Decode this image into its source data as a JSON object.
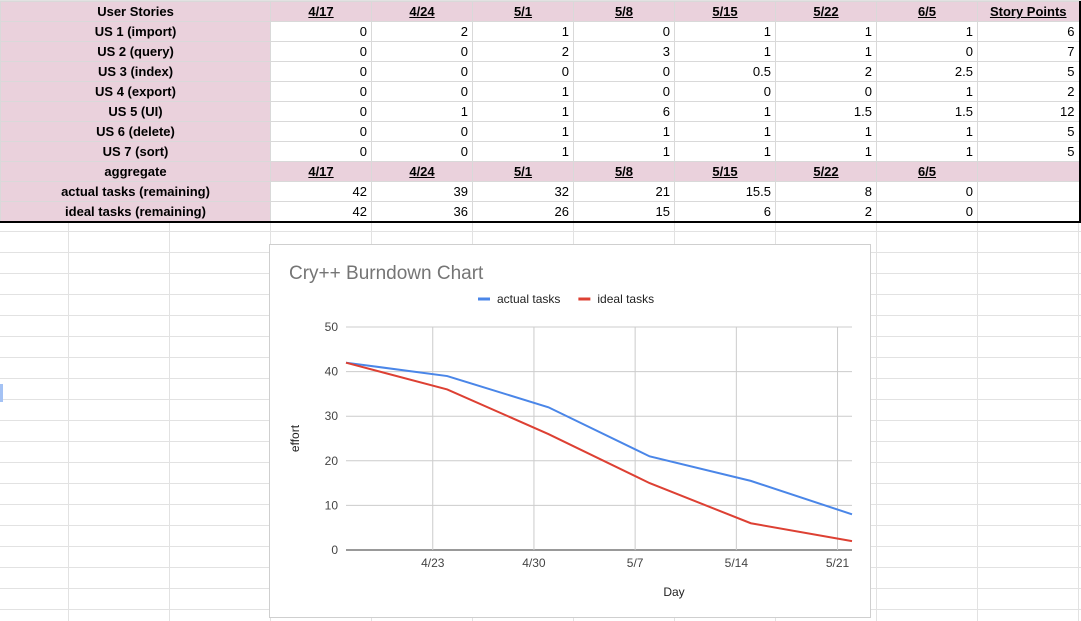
{
  "sheet": {
    "header": [
      "User Stories",
      "4/17",
      "4/24",
      "5/1",
      "5/8",
      "5/15",
      "5/22",
      "6/5",
      "Story Points"
    ],
    "stories": [
      {
        "label": "US 1 (import)",
        "values": [
          "0",
          "2",
          "1",
          "0",
          "1",
          "1",
          "1",
          "6"
        ]
      },
      {
        "label": "US 2 (query)",
        "values": [
          "0",
          "0",
          "2",
          "3",
          "1",
          "1",
          "0",
          "7"
        ]
      },
      {
        "label": "US 3 (index)",
        "values": [
          "0",
          "0",
          "0",
          "0",
          "0.5",
          "2",
          "2.5",
          "5"
        ]
      },
      {
        "label": "US 4 (export)",
        "values": [
          "0",
          "0",
          "1",
          "0",
          "0",
          "0",
          "1",
          "2"
        ]
      },
      {
        "label": "US 5 (UI)",
        "values": [
          "0",
          "1",
          "1",
          "6",
          "1",
          "1.5",
          "1.5",
          "12"
        ]
      },
      {
        "label": "US 6 (delete)",
        "values": [
          "0",
          "0",
          "1",
          "1",
          "1",
          "1",
          "1",
          "5"
        ]
      },
      {
        "label": "US 7 (sort)",
        "values": [
          "0",
          "0",
          "1",
          "1",
          "1",
          "1",
          "1",
          "5"
        ]
      }
    ],
    "aggregate": {
      "label": "aggregate",
      "dates": [
        "4/17",
        "4/24",
        "5/1",
        "5/8",
        "5/15",
        "5/22",
        "6/5"
      ]
    },
    "actual_row": {
      "label": "actual tasks (remaining)",
      "values": [
        "42",
        "39",
        "32",
        "21",
        "15.5",
        "8",
        "0"
      ]
    },
    "ideal_row": {
      "label": "ideal tasks (remaining)",
      "values": [
        "42",
        "36",
        "26",
        "15",
        "6",
        "2",
        "0"
      ]
    }
  },
  "chart_data": {
    "type": "line",
    "title": "Cry++ Burndown Chart",
    "xlabel": "Day",
    "ylabel": "effort",
    "ylim": [
      0,
      50
    ],
    "yticks": [
      0,
      10,
      20,
      30,
      40,
      50
    ],
    "xticks": [
      "4/23",
      "4/30",
      "5/7",
      "5/14",
      "5/21"
    ],
    "x": [
      "4/17",
      "4/24",
      "5/1",
      "5/8",
      "5/15",
      "5/22"
    ],
    "series": [
      {
        "name": "actual tasks",
        "color": "#4a86e8",
        "values": [
          42,
          39,
          32,
          21,
          15.5,
          8
        ]
      },
      {
        "name": "ideal tasks",
        "color": "#dd4033",
        "values": [
          42,
          36,
          26,
          15,
          6,
          2
        ]
      }
    ],
    "legend": "top",
    "grid": true
  }
}
